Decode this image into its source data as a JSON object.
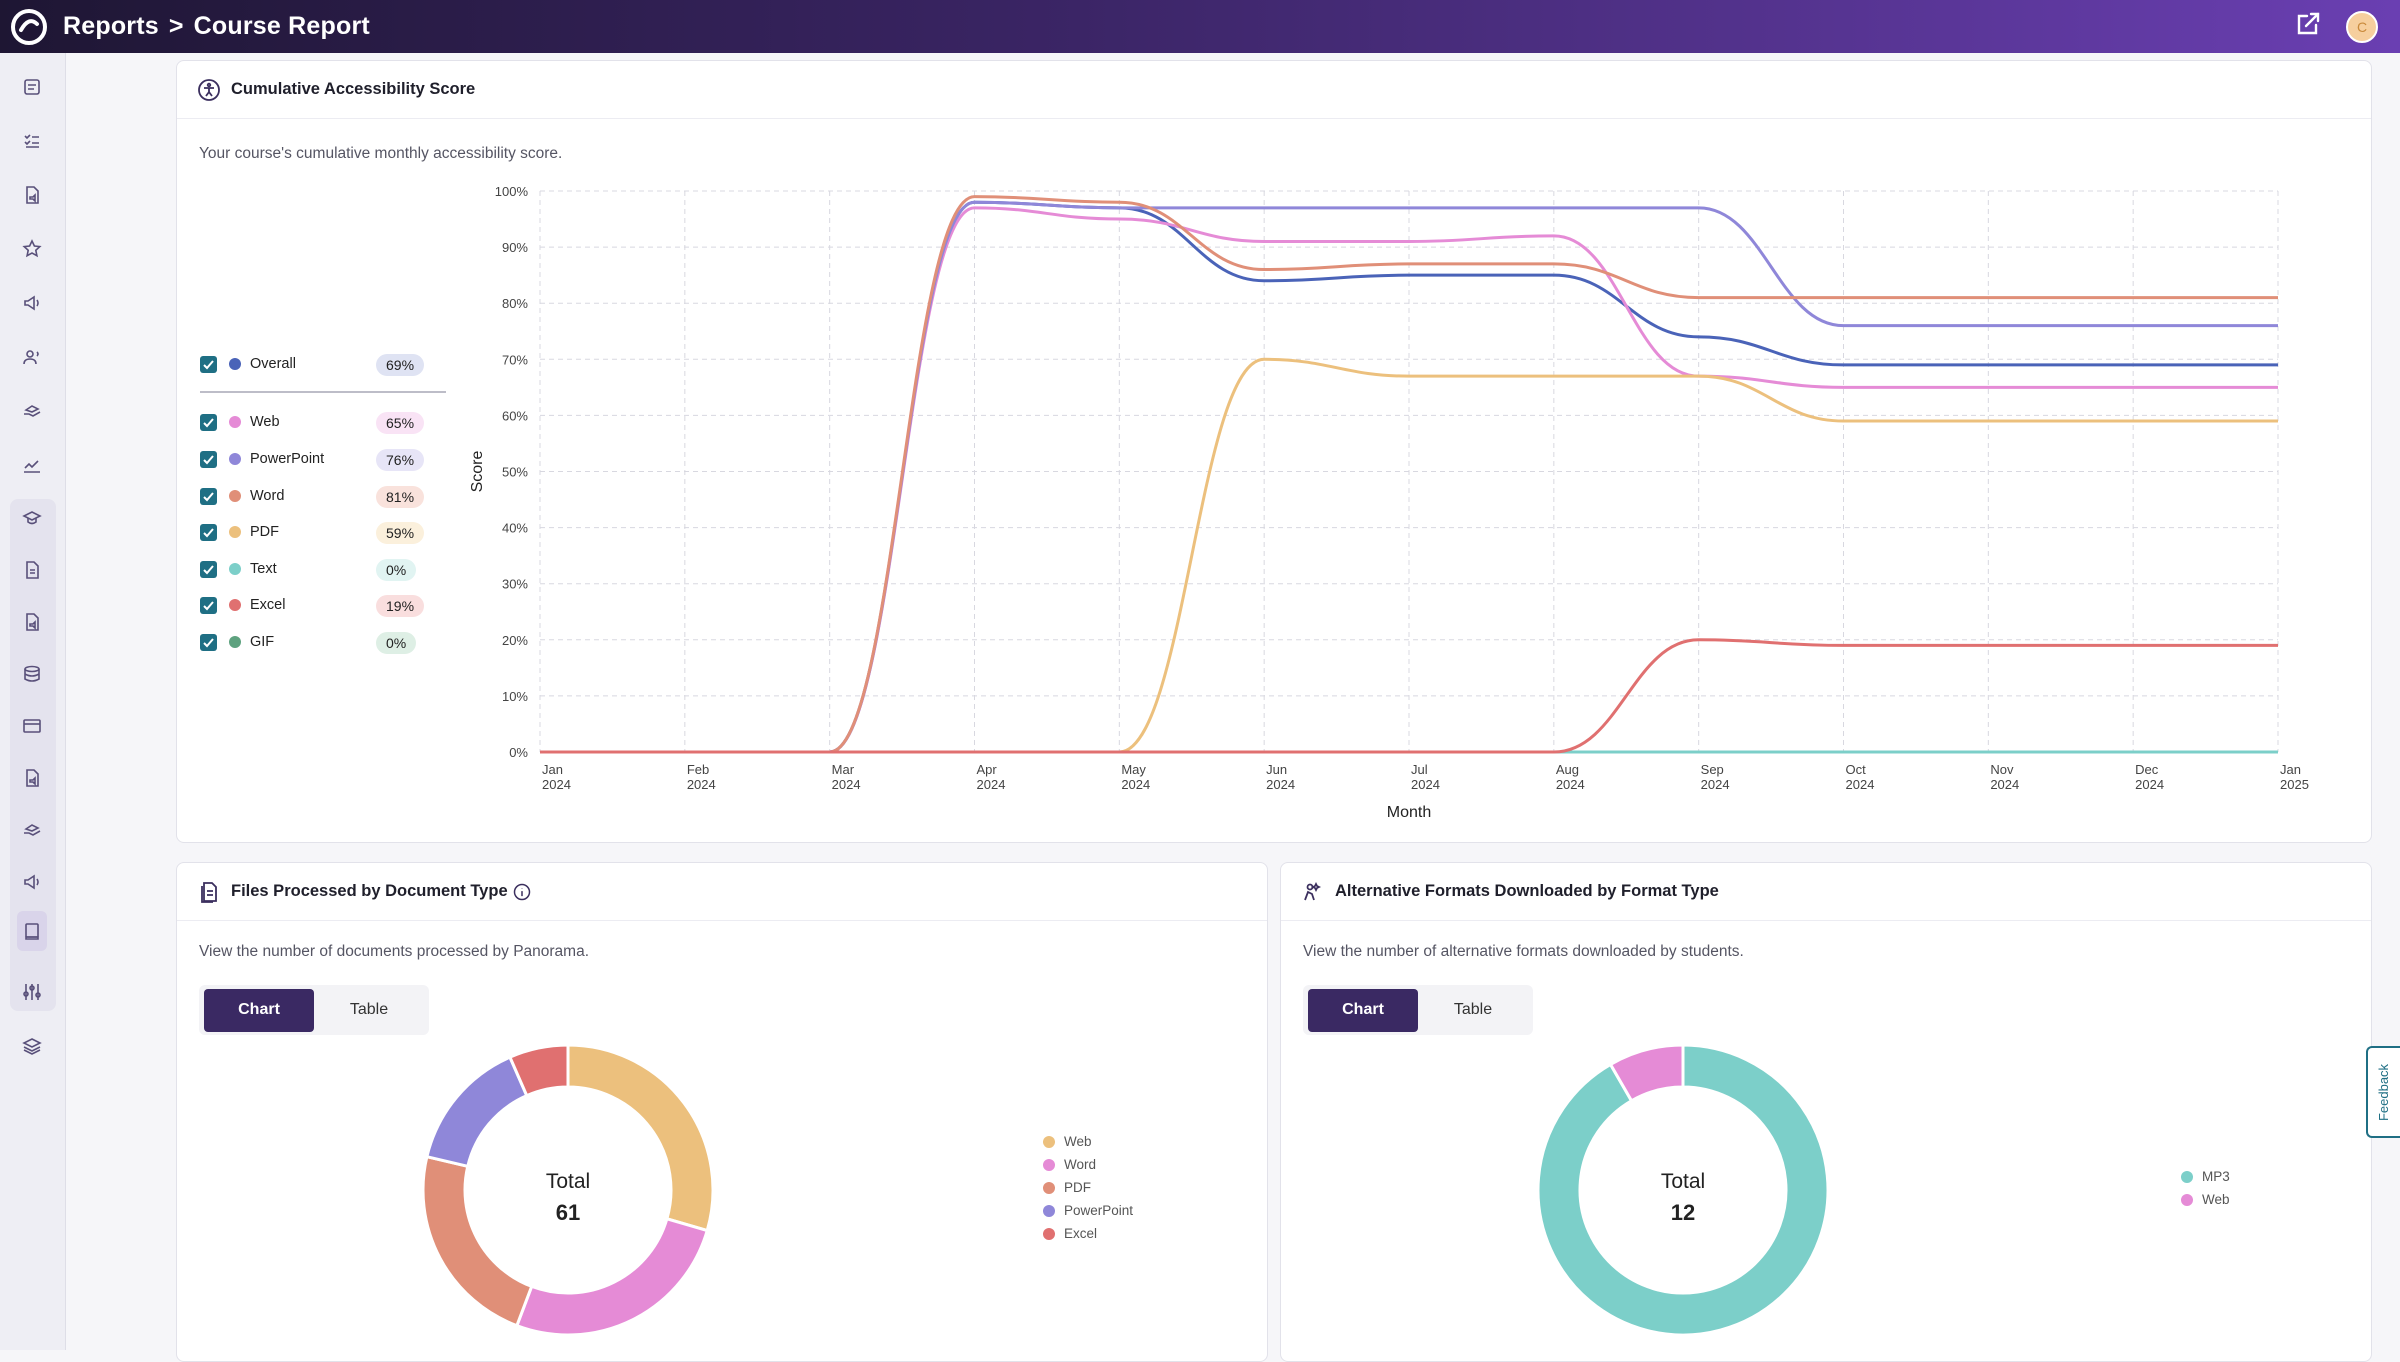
{
  "header": {
    "crumb_root": "Reports",
    "crumb_sep": ">",
    "crumb_page": "Course Report",
    "avatar_initial": "C"
  },
  "icons": {
    "logo": "panorama-logo-icon",
    "external": "external-link-icon"
  },
  "accessibility_card": {
    "title": "Cumulative Accessibility Score",
    "description": "Your course's cumulative monthly accessibility score.",
    "legend": [
      {
        "label": "Overall",
        "value": "69%",
        "color": "#4a63b8",
        "pill_bg": "#dfe3f3"
      },
      {
        "label": "Web",
        "value": "65%",
        "color": "#e58bd6",
        "pill_bg": "#f9e3f5"
      },
      {
        "label": "PowerPoint",
        "value": "76%",
        "color": "#8f87d9",
        "pill_bg": "#e7e5f7"
      },
      {
        "label": "Word",
        "value": "81%",
        "color": "#e08f78",
        "pill_bg": "#f9e2dc"
      },
      {
        "label": "PDF",
        "value": "59%",
        "color": "#ecc07d",
        "pill_bg": "#fbf0dc"
      },
      {
        "label": "Text",
        "value": "0%",
        "color": "#7ccfc9",
        "pill_bg": "#e1f4f2"
      },
      {
        "label": "Excel",
        "value": "19%",
        "color": "#e07070",
        "pill_bg": "#f9dede"
      },
      {
        "label": "GIF",
        "value": "0%",
        "color": "#5ea27f",
        "pill_bg": "#deefe5"
      }
    ]
  },
  "chart_data": [
    {
      "type": "line",
      "ylabel": "Score",
      "xlabel": "Month",
      "ylim": [
        0,
        100
      ],
      "y_ticks": [
        "0%",
        "10%",
        "20%",
        "30%",
        "40%",
        "50%",
        "60%",
        "70%",
        "80%",
        "90%",
        "100%"
      ],
      "x_months": [
        "Jan",
        "Feb",
        "Mar",
        "Apr",
        "May",
        "Jun",
        "Jul",
        "Aug",
        "Sep",
        "Oct",
        "Nov",
        "Dec",
        "Jan"
      ],
      "x_years": [
        "2024",
        "2024",
        "2024",
        "2024",
        "2024",
        "2024",
        "2024",
        "2024",
        "2024",
        "2024",
        "2024",
        "2024",
        "2025"
      ],
      "grid": true,
      "series": [
        {
          "name": "Overall",
          "color": "#4a63b8",
          "values": [
            0,
            0,
            0,
            98,
            97,
            84,
            85,
            85,
            74,
            69,
            69,
            69,
            69
          ]
        },
        {
          "name": "Web",
          "color": "#e58bd6",
          "values": [
            0,
            0,
            0,
            97,
            95,
            91,
            91,
            92,
            67,
            65,
            65,
            65,
            65
          ]
        },
        {
          "name": "PowerPoint",
          "color": "#8f87d9",
          "values": [
            0,
            0,
            0,
            98,
            97,
            97,
            97,
            97,
            97,
            76,
            76,
            76,
            76
          ]
        },
        {
          "name": "Word",
          "color": "#e08f78",
          "values": [
            0,
            0,
            0,
            99,
            98,
            86,
            87,
            87,
            81,
            81,
            81,
            81,
            81
          ]
        },
        {
          "name": "PDF",
          "color": "#ecc07d",
          "values": [
            0,
            0,
            0,
            0,
            0,
            70,
            67,
            67,
            67,
            59,
            59,
            59,
            59
          ]
        },
        {
          "name": "Text",
          "color": "#7ccfc9",
          "values": [
            0,
            0,
            0,
            0,
            0,
            0,
            0,
            0,
            0,
            0,
            0,
            0,
            0
          ]
        },
        {
          "name": "Excel",
          "color": "#e07070",
          "values": [
            0,
            0,
            0,
            0,
            0,
            0,
            0,
            0,
            20,
            19,
            19,
            19,
            19
          ]
        }
      ]
    },
    {
      "type": "pie",
      "center_label": "Total",
      "total": "61",
      "categories": [
        "Web",
        "Word",
        "PDF",
        "PowerPoint",
        "Excel"
      ],
      "values": [
        18,
        16,
        14,
        9,
        4
      ],
      "colors": [
        "#ecc07d",
        "#e58bd6",
        "#e08f78",
        "#8f87d9",
        "#e07070"
      ]
    },
    {
      "type": "pie",
      "center_label": "Total",
      "total": "12",
      "categories": [
        "MP3",
        "Web"
      ],
      "values": [
        11,
        1
      ],
      "colors": [
        "#7ccfc9",
        "#e58bd6"
      ]
    }
  ],
  "files_card": {
    "title": "Files Processed by Document Type",
    "description": "View the number of documents processed by Panorama.",
    "toggle_chart": "Chart",
    "toggle_table": "Table"
  },
  "formats_card": {
    "title": "Alternative Formats Downloaded by Format Type",
    "description": "View the number of alternative formats downloaded by students.",
    "toggle_chart": "Chart",
    "toggle_table": "Table"
  },
  "feedback_label": "Feedback"
}
